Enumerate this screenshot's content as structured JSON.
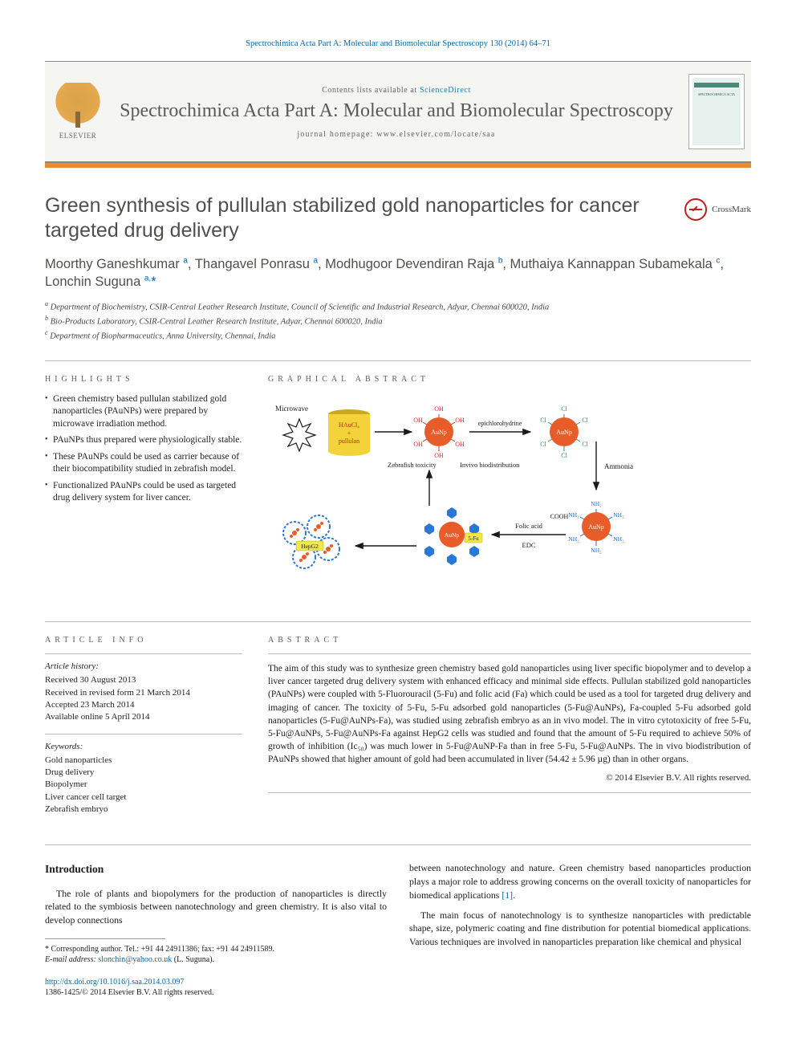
{
  "citation": "Spectrochimica Acta Part A: Molecular and Biomolecular Spectroscopy 130 (2014) 64–71",
  "header": {
    "contents_prefix": "Contents lists available at ",
    "contents_link": "ScienceDirect",
    "journal_name": "Spectrochimica Acta Part A: Molecular and Biomolecular Spectroscopy",
    "homepage_label": "journal homepage: www.elsevier.com/locate/saa",
    "publisher": "ELSEVIER",
    "cover_label": "SPECTROCHIMICA ACTA"
  },
  "colors": {
    "accent_rule": "#e98b2e",
    "link": "#0066a8",
    "heading_gray": "#4f4f4c",
    "body_text": "#1a1a1a",
    "border_gray": "#bdbdbd"
  },
  "title": "Green synthesis of pullulan stabilized gold nanoparticles for cancer targeted drug delivery",
  "crossmark_label": "CrossMark",
  "authors_html": "Moorthy Ganeshkumar <sup>a</sup>, Thangavel Ponrasu <sup>a</sup>, Modhugoor Devendiran Raja <sup>b</sup>, Muthaiya Kannappan Subamekala <sup>c</sup>, Lonchin Suguna <sup>a,</sup><span class='star'>*</span>",
  "affiliations": [
    "a Department of Biochemistry, CSIR-Central Leather Research Institute, Council of Scientific and Industrial Research, Adyar, Chennai 600020, India",
    "b Bio-Products Laboratory, CSIR-Central Leather Research Institute, Adyar, Chennai 600020, India",
    "c Department of Biopharmaceutics, Anna University, Chennai, India"
  ],
  "highlights_heading": "HIGHLIGHTS",
  "highlights": [
    "Green chemistry based pullulan stabilized gold nanoparticles (PAuNPs) were prepared by microwave irradiation method.",
    "PAuNPs thus prepared were physiologically stable.",
    "These PAuNPs could be used as carrier because of their biocompatibility studied in zebrafish model.",
    "Functionalized PAuNPs could be used as targeted drug delivery system for liver cancer."
  ],
  "graphical_heading": "GRAPHICAL ABSTRACT",
  "graphical": {
    "labels": {
      "microwave": "Microwave",
      "reagent": "HAuCl₄\n+\npullulan",
      "epich": "epichlorohydrine",
      "ammonia": "Ammonia",
      "zft": "Zebrafish toxicity",
      "invivo": "Invivo biodistribution",
      "hepg2": "HepG2",
      "folic": "Folic acid",
      "edc": "EDC",
      "fivefu": "5-Fu",
      "oh": "OH",
      "cl": "Cl",
      "nh2": "NH₂",
      "cooh": "COOH",
      "aunp": "AuNp"
    },
    "colors": {
      "aunp_fill": "#e85c2a",
      "oh": "#d62c2c",
      "cl": "#1aa04a",
      "nh2": "#1a68d6",
      "arrow": "#1a1a1a",
      "cylinder": "#f4d23a",
      "cylinder_top": "#c9a820",
      "hex_blue": "#2a78d6",
      "fivefu_bg": "#f0e84a",
      "cell_ring": "#2a78d6"
    }
  },
  "article_info_heading": "ARTICLE INFO",
  "article_history_label": "Article history:",
  "article_history": [
    "Received 30 August 2013",
    "Received in revised form 21 March 2014",
    "Accepted 23 March 2014",
    "Available online 5 April 2014"
  ],
  "keywords_label": "Keywords:",
  "keywords": [
    "Gold nanoparticles",
    "Drug delivery",
    "Biopolymer",
    "Liver cancer cell target",
    "Zebrafish embryo"
  ],
  "abstract_heading": "ABSTRACT",
  "abstract": "The aim of this study was to synthesize green chemistry based gold nanoparticles using liver specific biopolymer and to develop a liver cancer targeted drug delivery system with enhanced efficacy and minimal side effects. Pullulan stabilized gold nanoparticles (PAuNPs) were coupled with 5-Fluorouracil (5-Fu) and folic acid (Fa) which could be used as a tool for targeted drug delivery and imaging of cancer. The toxicity of 5-Fu, 5-Fu adsorbed gold nanoparticles (5-Fu@AuNPs), Fa-coupled 5-Fu adsorbed gold nanoparticles (5-Fu@AuNPs-Fa), was studied using zebrafish embryo as an in vivo model. The in vitro cytotoxicity of free 5-Fu, 5-Fu@AuNPs, 5-Fu@AuNPs-Fa against HepG2 cells was studied and found that the amount of 5-Fu required to achieve 50% of growth of inhibition (Ic₅₀) was much lower in 5-Fu@AuNP-Fa than in free 5-Fu, 5-Fu@AuNPs. The in vivo biodistribution of PAuNPs showed that higher amount of gold had been accumulated in liver (54.42 ± 5.96 µg) than in other organs.",
  "abstract_copyright": "© 2014 Elsevier B.V. All rights reserved.",
  "intro_heading": "Introduction",
  "intro_p1": "The role of plants and biopolymers for the production of nanoparticles is directly related to the symbiosis between nanotechnology and green chemistry. It is also vital to develop connections",
  "intro_p2": "between nanotechnology and nature. Green chemistry based nanoparticles production plays a major role to address growing concerns on the overall toxicity of nanoparticles for biomedical applications ",
  "intro_ref1": "[1]",
  "intro_p2_tail": ".",
  "intro_p3": "The main focus of nanotechnology is to synthesize nanoparticles with predictable shape, size, polymeric coating and fine distribution for potential biomedical applications. Various techniques are involved in nanoparticles preparation like chemical and physical",
  "footnote_corr": "* Corresponding author. Tel.: +91 44 24911386; fax: +91 44 24911589.",
  "footnote_email_label": "E-mail address: ",
  "footnote_email": "slonchin@yahoo.co.uk",
  "footnote_email_tail": " (L. Suguna).",
  "doi_url": "http://dx.doi.org/10.1016/j.saa.2014.03.097",
  "doi_issn_line": "1386-1425/© 2014 Elsevier B.V. All rights reserved."
}
